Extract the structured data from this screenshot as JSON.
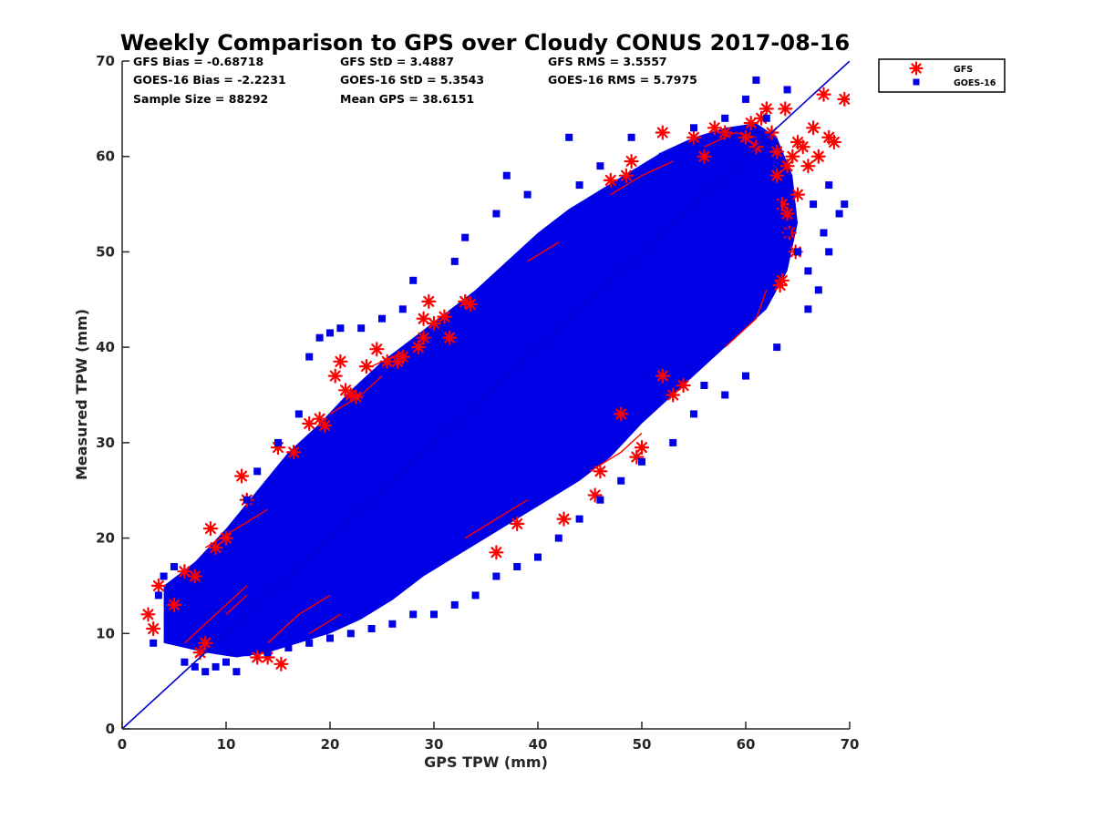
{
  "chart_data": {
    "type": "scatter",
    "title": "Weekly Comparison to GPS over Cloudy CONUS 2017-08-16",
    "xlabel": "GPS TPW (mm)",
    "ylabel": "Measured TPW (mm)",
    "xlim": [
      0,
      70
    ],
    "ylim": [
      0,
      70
    ],
    "xticks": [
      "0",
      "10",
      "20",
      "30",
      "40",
      "50",
      "60",
      "70"
    ],
    "yticks": [
      "0",
      "10",
      "20",
      "30",
      "40",
      "50",
      "60",
      "70"
    ],
    "grid": false,
    "legend_position": "outside-top-right",
    "reference_line": {
      "x": [
        0,
        70
      ],
      "y": [
        0,
        70
      ],
      "color": "#0000cc"
    },
    "stats": [
      "GFS Bias = -0.68718",
      "GFS StD = 3.4887",
      "GFS RMS = 3.5557",
      "GOES-16 Bias = -2.2231",
      "GOES-16 StD = 5.3543",
      "GOES-16 RMS = 5.7975",
      "Sample Size = 88292",
      "Mean GPS = 38.6151"
    ],
    "series": [
      {
        "name": "GFS",
        "marker": "asterisk",
        "color": "#ff0000",
        "points": [
          [
            2.5,
            12
          ],
          [
            3,
            10.5
          ],
          [
            3.5,
            15
          ],
          [
            5,
            13
          ],
          [
            6,
            16.5
          ],
          [
            7,
            16
          ],
          [
            7.5,
            8
          ],
          [
            8,
            9
          ],
          [
            8.5,
            21
          ],
          [
            9,
            19
          ],
          [
            10,
            20
          ],
          [
            11.5,
            26.5
          ],
          [
            12,
            24
          ],
          [
            13,
            7.5
          ],
          [
            14,
            7.5
          ],
          [
            15,
            29.5
          ],
          [
            15.3,
            6.8
          ],
          [
            16.5,
            29
          ],
          [
            18,
            32
          ],
          [
            19,
            32.5
          ],
          [
            19.5,
            31.8
          ],
          [
            20.5,
            37
          ],
          [
            21,
            38.5
          ],
          [
            21.5,
            35.5
          ],
          [
            22,
            35
          ],
          [
            22.5,
            34.8
          ],
          [
            23.5,
            38
          ],
          [
            24.5,
            39.8
          ],
          [
            25.5,
            38.5
          ],
          [
            26.5,
            38.5
          ],
          [
            27,
            39
          ],
          [
            28.5,
            40
          ],
          [
            29,
            41
          ],
          [
            29,
            43
          ],
          [
            29.5,
            44.8
          ],
          [
            30,
            42.5
          ],
          [
            31,
            43.2
          ],
          [
            31.5,
            41
          ],
          [
            33,
            44.8
          ],
          [
            33.5,
            44.5
          ],
          [
            36,
            18.5
          ],
          [
            38,
            21.5
          ],
          [
            42.5,
            22
          ],
          [
            45.5,
            24.5
          ],
          [
            46,
            27
          ],
          [
            49.5,
            28.5
          ],
          [
            50,
            29.5
          ],
          [
            48,
            33
          ],
          [
            52,
            37
          ],
          [
            53,
            35
          ],
          [
            54,
            36
          ],
          [
            47,
            57.5
          ],
          [
            48.5,
            58
          ],
          [
            49,
            59.5
          ],
          [
            52,
            62.5
          ],
          [
            55,
            62
          ],
          [
            58,
            62.5
          ],
          [
            60,
            62
          ],
          [
            60.5,
            63.5
          ],
          [
            61,
            61
          ],
          [
            61.5,
            64
          ],
          [
            62,
            65
          ],
          [
            62.5,
            62.5
          ],
          [
            63,
            60.5
          ],
          [
            63,
            58
          ],
          [
            63.3,
            46.5
          ],
          [
            63.5,
            47
          ],
          [
            63.5,
            55
          ],
          [
            63.8,
            65
          ],
          [
            64,
            59
          ],
          [
            64.2,
            52
          ],
          [
            64.5,
            60
          ],
          [
            64.8,
            50
          ],
          [
            65,
            61.5
          ],
          [
            65.5,
            61
          ],
          [
            66,
            59
          ],
          [
            66.5,
            63
          ],
          [
            67,
            60
          ],
          [
            67.5,
            66.5
          ],
          [
            68,
            62
          ],
          [
            68.5,
            61.5
          ],
          [
            69.5,
            66
          ],
          [
            65,
            56
          ],
          [
            64,
            54
          ],
          [
            57,
            63
          ],
          [
            56,
            60
          ]
        ]
      },
      {
        "name": "GOES-16",
        "marker": "square",
        "color": "#0000e6",
        "points": [
          [
            3,
            9
          ],
          [
            3.5,
            14
          ],
          [
            4,
            16
          ],
          [
            5,
            17
          ],
          [
            5.5,
            11
          ],
          [
            6,
            7
          ],
          [
            7,
            6.5
          ],
          [
            8,
            6
          ],
          [
            9,
            6.5
          ],
          [
            10,
            7
          ],
          [
            11,
            6
          ],
          [
            12,
            24
          ],
          [
            13,
            27
          ],
          [
            15,
            30
          ],
          [
            17,
            33
          ],
          [
            18,
            39
          ],
          [
            19,
            41
          ],
          [
            20,
            41.5
          ],
          [
            21,
            42
          ],
          [
            23,
            42
          ],
          [
            25,
            43
          ],
          [
            27,
            44
          ],
          [
            28,
            47
          ],
          [
            32,
            49
          ],
          [
            33,
            51.5
          ],
          [
            36,
            54
          ],
          [
            37,
            58
          ],
          [
            39,
            56
          ],
          [
            42,
            53
          ],
          [
            43,
            62
          ],
          [
            44,
            57
          ],
          [
            46,
            59
          ],
          [
            49,
            62
          ],
          [
            52,
            60
          ],
          [
            55,
            63
          ],
          [
            58,
            64
          ],
          [
            60,
            66
          ],
          [
            61,
            68
          ],
          [
            62,
            64
          ],
          [
            64,
            67
          ],
          [
            60,
            59
          ],
          [
            62,
            58
          ],
          [
            63,
            55
          ],
          [
            64,
            52
          ],
          [
            65,
            50
          ],
          [
            66,
            48
          ],
          [
            67,
            46
          ],
          [
            66,
            44
          ],
          [
            63,
            40
          ],
          [
            60,
            37
          ],
          [
            58,
            35
          ],
          [
            56,
            36
          ],
          [
            55,
            33
          ],
          [
            53,
            30
          ],
          [
            50,
            28
          ],
          [
            48,
            26
          ],
          [
            46,
            24
          ],
          [
            44,
            22
          ],
          [
            42,
            20
          ],
          [
            40,
            18
          ],
          [
            38,
            17
          ],
          [
            36,
            16
          ],
          [
            34,
            14
          ],
          [
            32,
            13
          ],
          [
            30,
            12
          ],
          [
            28,
            12
          ],
          [
            26,
            11
          ],
          [
            24,
            10.5
          ],
          [
            22,
            10
          ],
          [
            20,
            9.5
          ],
          [
            18,
            9
          ],
          [
            16,
            8.5
          ],
          [
            14,
            8
          ],
          [
            12,
            8
          ],
          [
            69.5,
            55
          ],
          [
            69,
            54
          ],
          [
            68,
            50
          ],
          [
            67.5,
            52
          ],
          [
            66.5,
            55
          ],
          [
            68,
            57
          ]
        ]
      }
    ]
  }
}
